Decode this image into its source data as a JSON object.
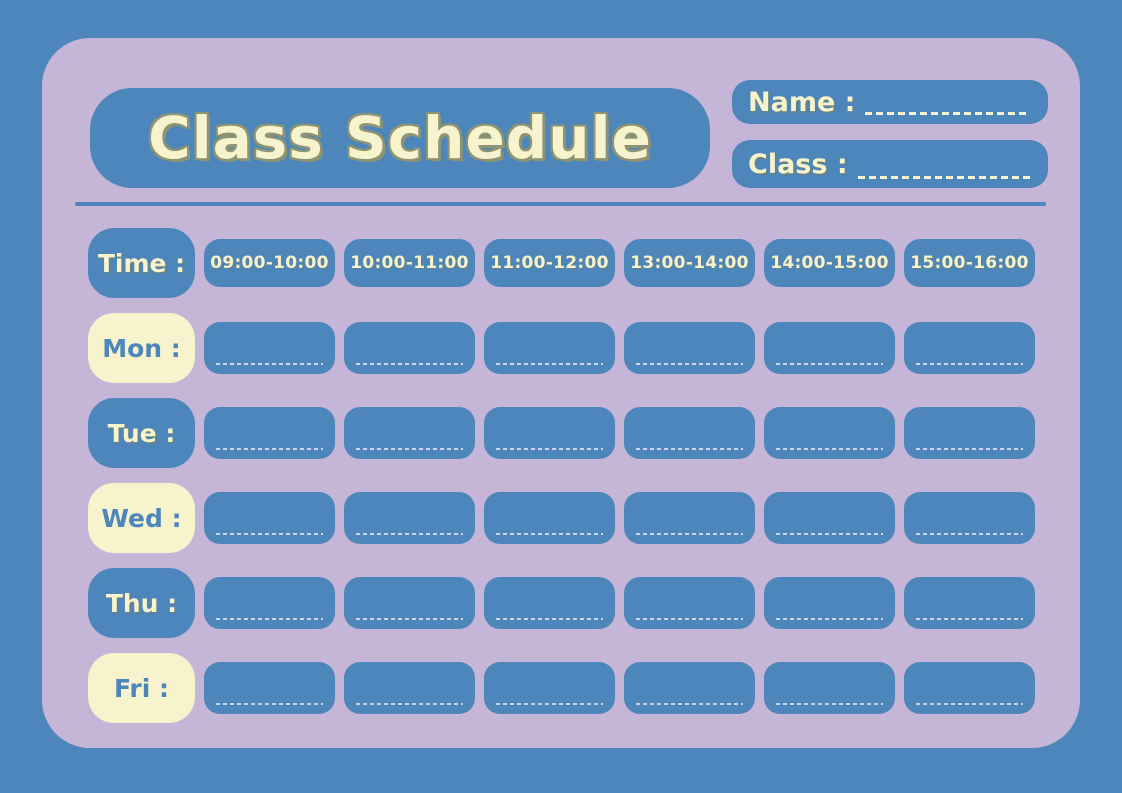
{
  "header": {
    "title": "Class Schedule",
    "name_label": "Name :",
    "class_label": "Class :"
  },
  "schedule": {
    "time_label": "Time :",
    "time_slots": [
      "09:00-10:00",
      "10:00-11:00",
      "11:00-12:00",
      "13:00-14:00",
      "14:00-15:00",
      "15:00-16:00"
    ],
    "days": [
      {
        "label": "Mon :",
        "variant": "cream"
      },
      {
        "label": "Tue :",
        "variant": "blue"
      },
      {
        "label": "Wed :",
        "variant": "cream"
      },
      {
        "label": "Thu :",
        "variant": "blue"
      },
      {
        "label": "Fri :",
        "variant": "cream"
      }
    ]
  },
  "colors": {
    "background": "#4d86bb",
    "card": "#c5b5d7",
    "box_blue": "#4d86bb",
    "cream": "#f7f3cd",
    "title_shadow": "#8d9474",
    "cell_dash": "#ccd5e9"
  }
}
